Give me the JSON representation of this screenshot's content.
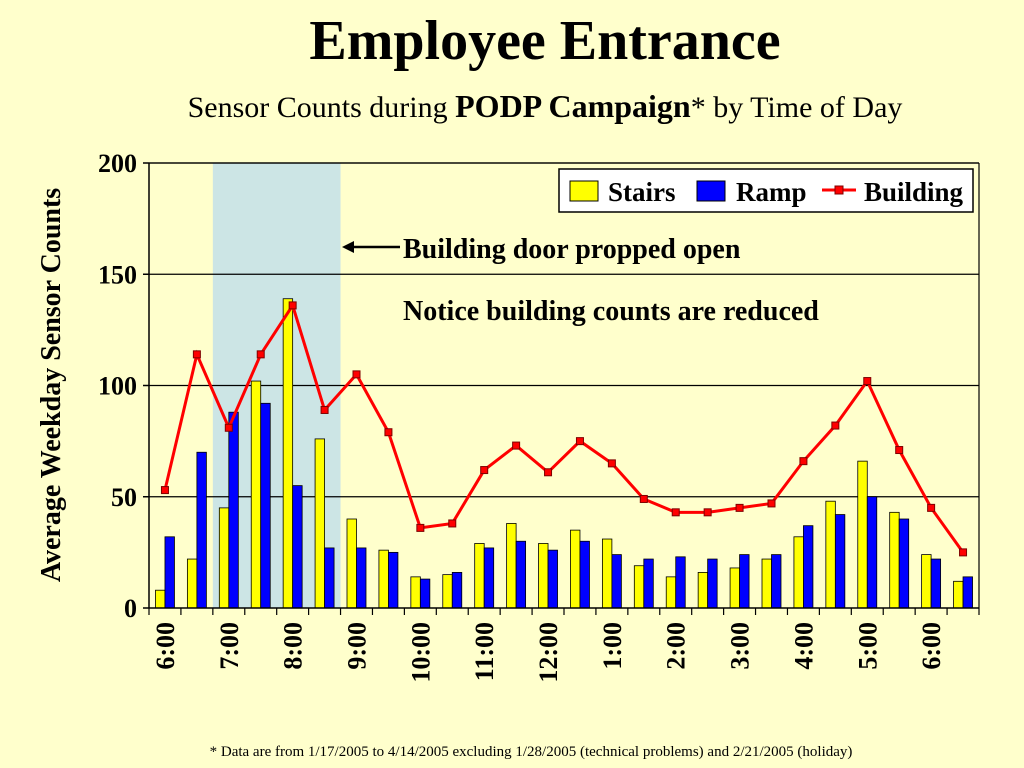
{
  "title": "Employee Entrance",
  "subtitle": {
    "prefix": "Sensor Counts during ",
    "bold": "PODP Campaign",
    "suffix": "* by Time of Day"
  },
  "footnote": "* Data are from 1/17/2005 to 4/14/2005 excluding 1/28/2005 (technical problems) and 2/21/2005 (holiday)",
  "colors": {
    "stairs": "#FFFF00",
    "ramp": "#0000FF",
    "building": "#FF0000",
    "highlight": "#CCE5E5",
    "background": "#FFFFCC"
  },
  "chart_data": {
    "type": "bar",
    "ylabel": "Average Weekday Sensor Counts",
    "ylim": [
      0,
      200
    ],
    "yticks": [
      0,
      50,
      100,
      150,
      200
    ],
    "grid": true,
    "legend_position": "top-right",
    "x_tick_labels": [
      "6:00",
      "7:00",
      "8:00",
      "9:00",
      "10:00",
      "11:00",
      "12:00",
      "1:00",
      "2:00",
      "3:00",
      "4:00",
      "5:00",
      "6:00"
    ],
    "x_tick_every": 2,
    "highlight_range_slots": [
      2,
      6
    ],
    "series": [
      {
        "name": "Stairs",
        "kind": "bar",
        "values": [
          8,
          22,
          45,
          102,
          139,
          76,
          40,
          26,
          14,
          15,
          29,
          38,
          29,
          35,
          31,
          19,
          14,
          16,
          18,
          22,
          32,
          48,
          66,
          43,
          24,
          12
        ]
      },
      {
        "name": "Ramp",
        "kind": "bar",
        "values": [
          32,
          70,
          88,
          92,
          55,
          27,
          27,
          25,
          13,
          16,
          27,
          30,
          26,
          30,
          24,
          22,
          23,
          22,
          24,
          24,
          37,
          42,
          50,
          40,
          22,
          14
        ]
      },
      {
        "name": "Building",
        "kind": "line",
        "values": [
          53,
          114,
          81,
          114,
          136,
          89,
          105,
          79,
          36,
          38,
          62,
          73,
          61,
          75,
          65,
          49,
          43,
          43,
          45,
          47,
          66,
          82,
          102,
          71,
          45,
          25
        ]
      }
    ],
    "annotations": [
      {
        "text": "Building door propped open"
      },
      {
        "text": "Notice building counts are reduced"
      }
    ]
  }
}
